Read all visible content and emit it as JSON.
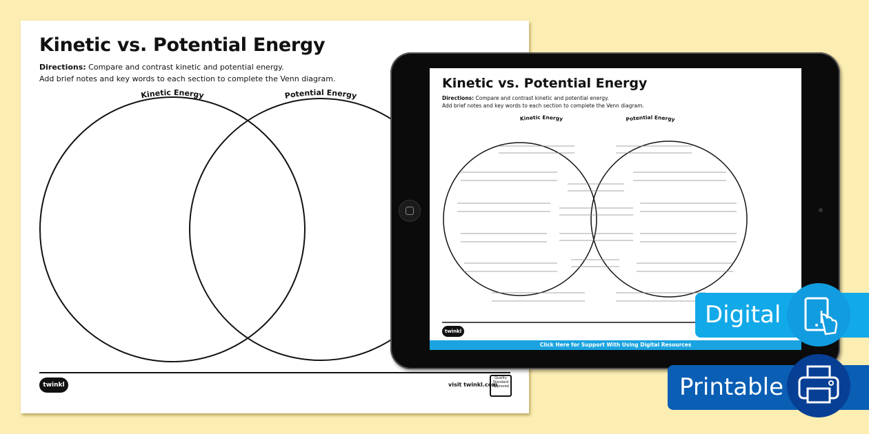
{
  "worksheet": {
    "title": "Kinetic vs. Potential Energy",
    "directions_label": "Directions:",
    "directions_line1": " Compare and contrast kinetic and potential energy.",
    "directions_line2": "Add brief notes and key words to each section to complete the Venn diagram.",
    "left_circle_label": "Kinetic Energy",
    "right_circle_label": "Potential Energy",
    "logo": "twinkl",
    "footer_link": "visit twinkl.com",
    "badge_text": "Quality Standard Approved"
  },
  "tablet": {
    "support_link": "Click Here for Support With Using Digital Resources"
  },
  "badges": {
    "digital": {
      "label": "Digital",
      "icon": "tablet-touch-icon",
      "color": "#12a9e8"
    },
    "printable": {
      "label": "Printable",
      "icon": "printer-icon",
      "color": "#0a5eb4"
    }
  },
  "colors": {
    "background": "#fcedb2",
    "support_bar": "#1aa3e0"
  }
}
